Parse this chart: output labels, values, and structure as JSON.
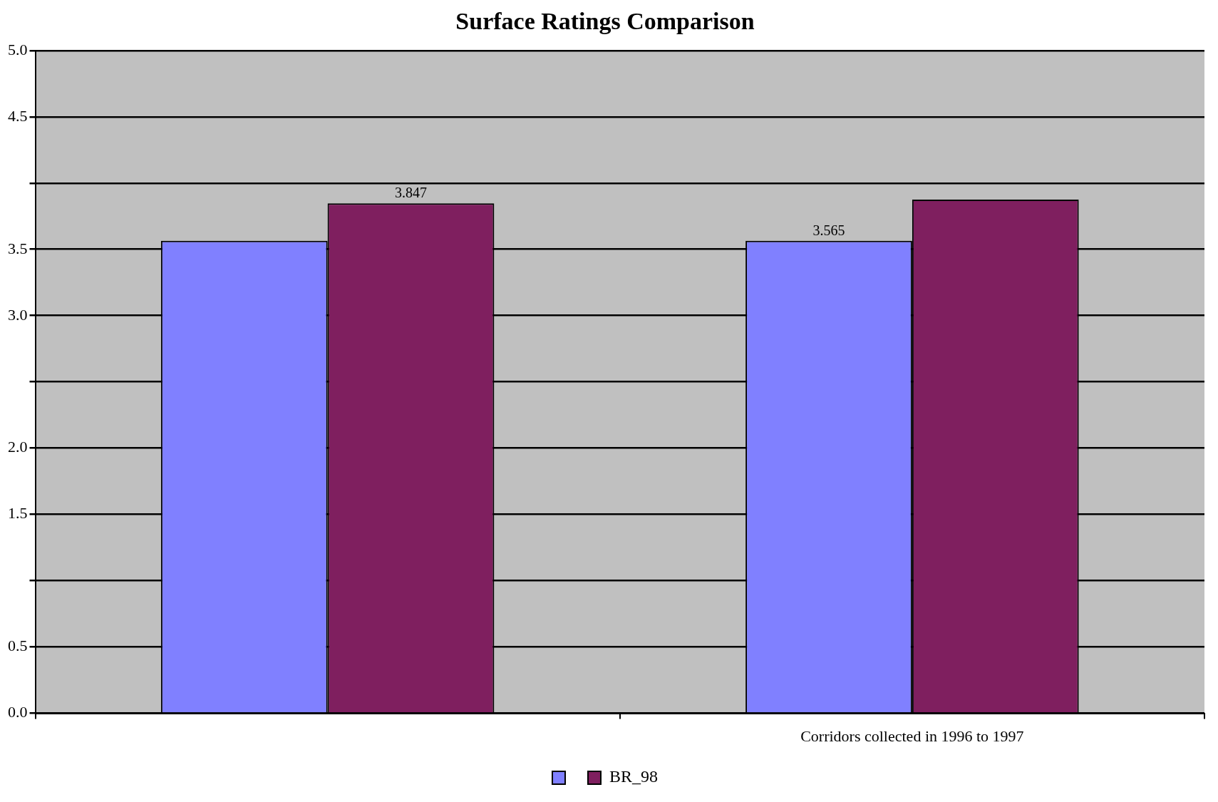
{
  "chart_data": {
    "type": "bar",
    "title": "Surface Ratings Comparison",
    "categories": [
      null,
      "Corridors collected in 1996 to 1997"
    ],
    "series": [
      {
        "color": "#8080ff",
        "values": [
          3.565,
          3.565
        ],
        "value_labels": [
          null,
          "3.565"
        ]
      },
      {
        "name": "BR_98",
        "color": "#7f1f5f",
        "values": [
          3.847,
          3.875
        ],
        "value_labels": [
          "3.847",
          null
        ]
      }
    ],
    "ylim": [
      0,
      5
    ],
    "yticks": [
      {
        "value": 0,
        "label": "0.0"
      },
      0.5,
      {
        "value": 1,
        "label": null
      },
      1.5,
      {
        "value": 2,
        "label": "2.0"
      },
      {
        "value": 2.5,
        "label": null
      },
      {
        "value": 3,
        "label": "3.0"
      },
      3.5,
      {
        "value": 4,
        "label": null
      },
      4.5,
      {
        "value": 5,
        "label": "5.0"
      }
    ],
    "grid": "y",
    "legend": "bottom"
  }
}
